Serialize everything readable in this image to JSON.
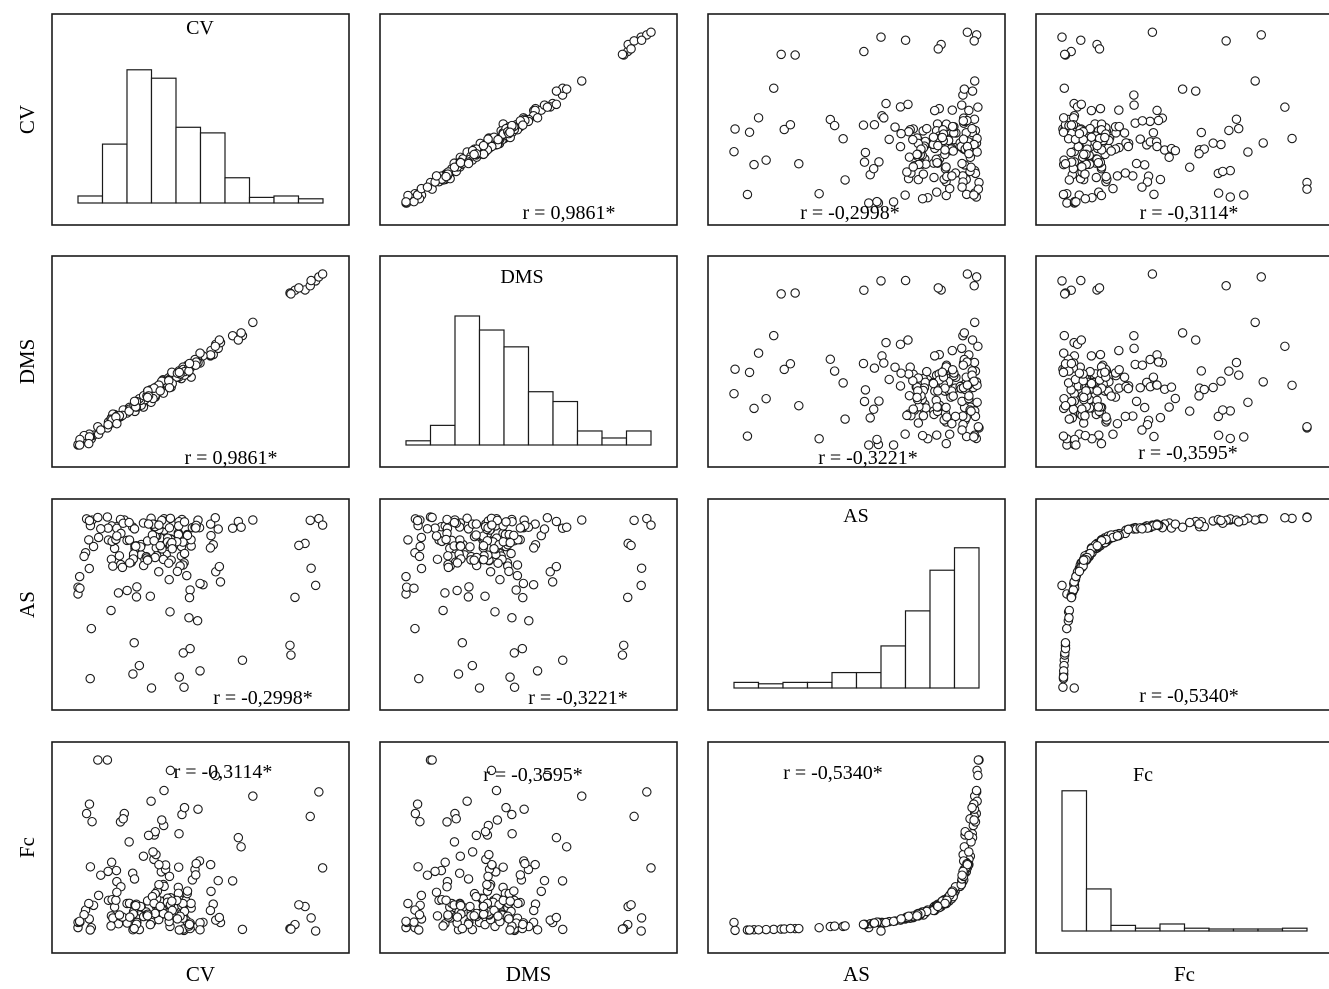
{
  "chart_data": {
    "type": "scatter-matrix",
    "variables": [
      "CV",
      "DMS",
      "AS",
      "Fc"
    ],
    "row_labels": [
      "CV",
      "DMS",
      "AS",
      "Fc"
    ],
    "column_labels": [
      "CV",
      "DMS",
      "AS",
      "Fc"
    ],
    "colors": {
      "stroke": "#1a1a1a",
      "marker_fill": "#ffffff",
      "background": "#ffffff"
    },
    "correlations": [
      {
        "vars": [
          "CV",
          "DMS"
        ],
        "label": "r = 0,9861*"
      },
      {
        "vars": [
          "CV",
          "AS"
        ],
        "label": "r = -0,2998*"
      },
      {
        "vars": [
          "CV",
          "Fc"
        ],
        "label": "r = -0,3114*"
      },
      {
        "vars": [
          "DMS",
          "AS"
        ],
        "label": "r = -0,3221*"
      },
      {
        "vars": [
          "DMS",
          "Fc"
        ],
        "label": "r = -0,3595*"
      },
      {
        "vars": [
          "AS",
          "Fc"
        ],
        "label": "r = -0,5340*"
      }
    ],
    "histograms": [
      {
        "variable": "CV",
        "type": "bar",
        "relative_heights": [
          0.05,
          0.42,
          0.95,
          0.89,
          0.54,
          0.5,
          0.18,
          0.04,
          0.05,
          0.03
        ]
      },
      {
        "variable": "DMS",
        "type": "bar",
        "relative_heights": [
          0.03,
          0.14,
          0.92,
          0.82,
          0.7,
          0.38,
          0.31,
          0.1,
          0.05,
          0.1
        ]
      },
      {
        "variable": "AS",
        "type": "bar",
        "relative_heights": [
          0.04,
          0.03,
          0.04,
          0.04,
          0.11,
          0.11,
          0.3,
          0.55,
          0.84,
          1.0
        ]
      },
      {
        "variable": "Fc",
        "type": "bar",
        "relative_heights": [
          1.0,
          0.3,
          0.04,
          0.02,
          0.05,
          0.02,
          0.01,
          0.01,
          0.01,
          0.02
        ]
      }
    ],
    "scatter_panels": "off-diagonal panels: each pairs the column variable (x) with the row variable (y), points in relative 0-1 data scale",
    "grid": false,
    "legend": "none"
  }
}
